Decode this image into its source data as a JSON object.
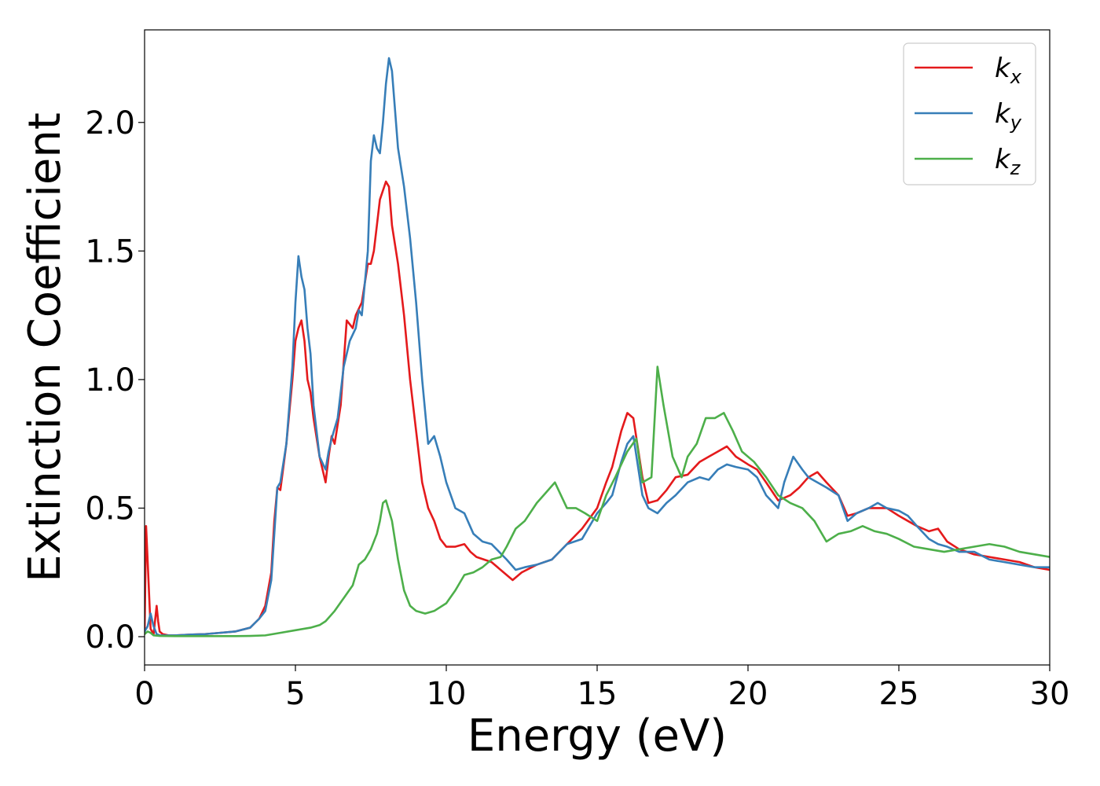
{
  "chart_data": {
    "type": "line",
    "title": "",
    "xlabel": "Energy (eV)",
    "ylabel": "Extinction Coefficient",
    "xlim": [
      0,
      30
    ],
    "ylim": [
      -0.11,
      2.36
    ],
    "x_ticks": [
      0,
      5,
      10,
      15,
      20,
      25,
      30
    ],
    "y_ticks": [
      0.0,
      0.5,
      1.0,
      1.5,
      2.0
    ],
    "x_tick_labels": [
      "0",
      "5",
      "10",
      "15",
      "20",
      "25",
      "30"
    ],
    "y_tick_labels": [
      "0.0",
      "0.5",
      "1.0",
      "1.5",
      "2.0"
    ],
    "grid": false,
    "legend_position": "top-right",
    "series": [
      {
        "name": "k_x",
        "label_base": "k",
        "label_sub": "x",
        "color": "#e41a1c",
        "x": [
          0,
          0.05,
          0.1,
          0.2,
          0.3,
          0.4,
          0.45,
          0.5,
          0.6,
          0.8,
          1.0,
          1.5,
          2.0,
          2.5,
          3.0,
          3.5,
          3.8,
          4.0,
          4.2,
          4.3,
          4.4,
          4.5,
          4.7,
          4.9,
          5.0,
          5.1,
          5.2,
          5.3,
          5.4,
          5.5,
          5.6,
          5.8,
          6.0,
          6.1,
          6.2,
          6.3,
          6.5,
          6.7,
          6.9,
          7.0,
          7.2,
          7.4,
          7.5,
          7.6,
          7.7,
          7.8,
          8.0,
          8.1,
          8.2,
          8.4,
          8.6,
          8.8,
          9.0,
          9.2,
          9.4,
          9.6,
          9.8,
          10.0,
          10.3,
          10.6,
          10.8,
          11.0,
          11.5,
          12.0,
          12.2,
          12.5,
          13.0,
          13.5,
          14.0,
          14.5,
          15.0,
          15.3,
          15.5,
          15.8,
          16.0,
          16.2,
          16.5,
          16.7,
          17.0,
          17.3,
          17.6,
          18.0,
          18.4,
          18.7,
          19.0,
          19.3,
          19.6,
          20.0,
          20.3,
          20.6,
          21.0,
          21.4,
          21.7,
          22.0,
          22.3,
          22.6,
          23.0,
          23.3,
          23.6,
          24.0,
          24.3,
          24.6,
          25.0,
          25.3,
          25.6,
          26.0,
          26.3,
          26.6,
          27.0,
          27.5,
          28.0,
          28.5,
          29.0,
          29.5,
          30.0
        ],
        "y": [
          0.01,
          0.43,
          0.3,
          0.03,
          0.01,
          0.12,
          0.06,
          0.02,
          0.01,
          0.005,
          0.005,
          0.008,
          0.01,
          0.015,
          0.02,
          0.035,
          0.07,
          0.12,
          0.25,
          0.45,
          0.58,
          0.57,
          0.75,
          1.0,
          1.15,
          1.2,
          1.23,
          1.15,
          1.0,
          0.95,
          0.85,
          0.7,
          0.6,
          0.7,
          0.78,
          0.75,
          0.9,
          1.23,
          1.2,
          1.25,
          1.3,
          1.45,
          1.45,
          1.5,
          1.6,
          1.7,
          1.77,
          1.75,
          1.6,
          1.45,
          1.25,
          1.0,
          0.8,
          0.6,
          0.5,
          0.45,
          0.38,
          0.35,
          0.35,
          0.36,
          0.33,
          0.31,
          0.29,
          0.24,
          0.22,
          0.25,
          0.28,
          0.3,
          0.36,
          0.42,
          0.5,
          0.6,
          0.66,
          0.8,
          0.87,
          0.85,
          0.62,
          0.52,
          0.53,
          0.57,
          0.62,
          0.63,
          0.68,
          0.7,
          0.72,
          0.74,
          0.7,
          0.67,
          0.65,
          0.6,
          0.53,
          0.55,
          0.58,
          0.62,
          0.64,
          0.6,
          0.55,
          0.47,
          0.48,
          0.5,
          0.5,
          0.5,
          0.47,
          0.45,
          0.43,
          0.41,
          0.42,
          0.37,
          0.34,
          0.32,
          0.31,
          0.3,
          0.29,
          0.27,
          0.26
        ]
      },
      {
        "name": "k_y",
        "label_base": "k",
        "label_sub": "y",
        "color": "#377eb8",
        "x": [
          0,
          0.1,
          0.2,
          0.3,
          0.4,
          0.5,
          0.6,
          0.8,
          1.0,
          1.5,
          2.0,
          2.5,
          3.0,
          3.5,
          3.8,
          4.0,
          4.2,
          4.3,
          4.4,
          4.5,
          4.7,
          4.9,
          5.0,
          5.1,
          5.2,
          5.3,
          5.4,
          5.5,
          5.6,
          5.8,
          6.0,
          6.1,
          6.2,
          6.4,
          6.6,
          6.8,
          7.0,
          7.1,
          7.2,
          7.4,
          7.5,
          7.6,
          7.7,
          7.8,
          7.9,
          8.0,
          8.1,
          8.2,
          8.4,
          8.6,
          8.8,
          9.0,
          9.2,
          9.4,
          9.6,
          9.8,
          10.0,
          10.3,
          10.6,
          10.9,
          11.2,
          11.5,
          12.0,
          12.3,
          12.6,
          13.0,
          13.5,
          14.0,
          14.5,
          15.0,
          15.3,
          15.5,
          15.8,
          16.0,
          16.2,
          16.5,
          16.7,
          17.0,
          17.3,
          17.6,
          18.0,
          18.4,
          18.7,
          19.0,
          19.3,
          19.6,
          20.0,
          20.3,
          20.6,
          21.0,
          21.2,
          21.5,
          21.8,
          22.0,
          22.3,
          22.6,
          23.0,
          23.3,
          23.6,
          24.0,
          24.3,
          24.6,
          25.0,
          25.3,
          25.6,
          26.0,
          26.3,
          26.6,
          27.0,
          27.5,
          28.0,
          28.5,
          29.0,
          29.5,
          30.0
        ],
        "y": [
          0.02,
          0.04,
          0.09,
          0.04,
          0.01,
          0.005,
          0.005,
          0.005,
          0.005,
          0.008,
          0.01,
          0.015,
          0.02,
          0.035,
          0.07,
          0.1,
          0.22,
          0.4,
          0.58,
          0.6,
          0.75,
          1.05,
          1.3,
          1.48,
          1.4,
          1.35,
          1.2,
          1.1,
          0.9,
          0.7,
          0.65,
          0.72,
          0.77,
          0.85,
          1.05,
          1.15,
          1.2,
          1.27,
          1.25,
          1.5,
          1.85,
          1.95,
          1.9,
          1.88,
          2.0,
          2.15,
          2.25,
          2.2,
          1.9,
          1.75,
          1.55,
          1.3,
          1.0,
          0.75,
          0.78,
          0.7,
          0.6,
          0.5,
          0.48,
          0.4,
          0.37,
          0.36,
          0.3,
          0.26,
          0.27,
          0.28,
          0.3,
          0.36,
          0.38,
          0.48,
          0.52,
          0.55,
          0.68,
          0.75,
          0.78,
          0.55,
          0.5,
          0.48,
          0.52,
          0.55,
          0.6,
          0.62,
          0.61,
          0.65,
          0.67,
          0.66,
          0.65,
          0.62,
          0.55,
          0.5,
          0.6,
          0.7,
          0.65,
          0.62,
          0.6,
          0.58,
          0.55,
          0.45,
          0.48,
          0.5,
          0.52,
          0.5,
          0.49,
          0.47,
          0.43,
          0.38,
          0.36,
          0.35,
          0.33,
          0.33,
          0.3,
          0.29,
          0.28,
          0.27,
          0.27
        ]
      },
      {
        "name": "k_z",
        "label_base": "k",
        "label_sub": "z",
        "color": "#4daf4a",
        "x": [
          0,
          0.1,
          0.2,
          0.3,
          0.5,
          1.0,
          2.0,
          3.0,
          3.5,
          4.0,
          4.5,
          5.0,
          5.5,
          5.8,
          6.0,
          6.3,
          6.6,
          6.9,
          7.1,
          7.3,
          7.5,
          7.7,
          7.8,
          7.9,
          8.0,
          8.2,
          8.4,
          8.6,
          8.8,
          9.0,
          9.3,
          9.6,
          10.0,
          10.3,
          10.6,
          10.9,
          11.2,
          11.5,
          11.8,
          12.0,
          12.3,
          12.6,
          13.0,
          13.3,
          13.6,
          14.0,
          14.3,
          14.6,
          15.0,
          15.3,
          15.6,
          16.0,
          16.3,
          16.5,
          16.8,
          17.0,
          17.2,
          17.5,
          17.8,
          18.0,
          18.3,
          18.6,
          18.9,
          19.2,
          19.5,
          19.8,
          20.2,
          20.6,
          21.0,
          21.4,
          21.8,
          22.2,
          22.6,
          23.0,
          23.4,
          23.8,
          24.2,
          24.6,
          25.0,
          25.5,
          26.0,
          26.5,
          27.0,
          27.5,
          28.0,
          28.5,
          29.0,
          29.5,
          30.0
        ],
        "y": [
          0.01,
          0.02,
          0.015,
          0.005,
          0.003,
          0.002,
          0.002,
          0.002,
          0.003,
          0.005,
          0.015,
          0.025,
          0.035,
          0.045,
          0.06,
          0.1,
          0.15,
          0.2,
          0.28,
          0.3,
          0.34,
          0.4,
          0.45,
          0.52,
          0.53,
          0.45,
          0.3,
          0.18,
          0.12,
          0.1,
          0.09,
          0.1,
          0.13,
          0.18,
          0.24,
          0.25,
          0.27,
          0.3,
          0.31,
          0.35,
          0.42,
          0.45,
          0.52,
          0.56,
          0.6,
          0.5,
          0.5,
          0.48,
          0.45,
          0.55,
          0.62,
          0.72,
          0.77,
          0.6,
          0.62,
          1.05,
          0.9,
          0.7,
          0.62,
          0.7,
          0.75,
          0.85,
          0.85,
          0.87,
          0.8,
          0.72,
          0.68,
          0.62,
          0.55,
          0.52,
          0.5,
          0.45,
          0.37,
          0.4,
          0.41,
          0.43,
          0.41,
          0.4,
          0.38,
          0.35,
          0.34,
          0.33,
          0.34,
          0.35,
          0.36,
          0.35,
          0.33,
          0.32,
          0.31
        ]
      }
    ]
  }
}
